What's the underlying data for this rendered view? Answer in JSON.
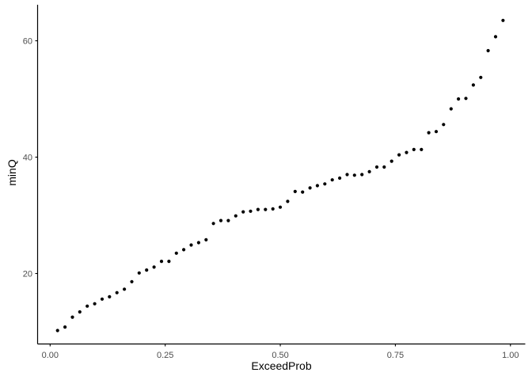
{
  "figure": {
    "background": "#ffffff",
    "xlabel": "ExceedProb",
    "ylabel": "minQ"
  },
  "chart_data": {
    "type": "scatter",
    "title": "",
    "xlabel": "ExceedProb",
    "ylabel": "minQ",
    "point_color": "#000000",
    "axis_color": "#000000",
    "tick_label_color": "#4d4d4d",
    "grid": false,
    "legend": null,
    "xlim": [
      -0.0272,
      1.0322
    ],
    "ylim": [
      7.89,
      66.19
    ],
    "x_ticks": [
      0,
      0.25,
      0.5,
      0.75,
      1.0
    ],
    "x_tick_labels": [
      "0.00",
      "0.25",
      "0.50",
      "0.75",
      "1.00"
    ],
    "y_ticks": [
      20,
      40,
      60
    ],
    "y_tick_labels": [
      "20",
      "40",
      "60"
    ],
    "x": [
      0.0161,
      0.0323,
      0.0484,
      0.0645,
      0.0806,
      0.0968,
      0.1129,
      0.129,
      0.1452,
      0.1613,
      0.1774,
      0.1935,
      0.2097,
      0.2258,
      0.2419,
      0.2581,
      0.2742,
      0.2903,
      0.3065,
      0.3226,
      0.3387,
      0.3548,
      0.371,
      0.3871,
      0.4032,
      0.4194,
      0.4355,
      0.4516,
      0.4677,
      0.4839,
      0.5,
      0.5161,
      0.5323,
      0.5484,
      0.5645,
      0.5806,
      0.5968,
      0.6129,
      0.629,
      0.6452,
      0.6613,
      0.6774,
      0.6935,
      0.7097,
      0.7258,
      0.7419,
      0.7581,
      0.7742,
      0.7903,
      0.8065,
      0.8226,
      0.8387,
      0.8548,
      0.871,
      0.8871,
      0.9032,
      0.9194,
      0.9355,
      0.9516,
      0.9677,
      0.9839
    ],
    "y": [
      10.2,
      10.8,
      12.5,
      13.4,
      14.4,
      14.8,
      15.6,
      16.0,
      16.7,
      17.3,
      18.6,
      20.1,
      20.6,
      21.1,
      22.1,
      22.1,
      23.5,
      24.1,
      24.9,
      25.3,
      25.8,
      28.6,
      29.1,
      29.1,
      29.9,
      30.6,
      30.7,
      31.0,
      31.0,
      31.1,
      31.4,
      32.4,
      34.1,
      34.0,
      34.7,
      35.1,
      35.4,
      36.1,
      36.4,
      37.0,
      36.9,
      37.0,
      37.5,
      38.3,
      38.3,
      39.3,
      40.4,
      40.8,
      41.3,
      41.3,
      44.2,
      44.4,
      45.6,
      48.3,
      50.0,
      50.1,
      52.4,
      53.7,
      58.3,
      60.7,
      63.5
    ]
  }
}
